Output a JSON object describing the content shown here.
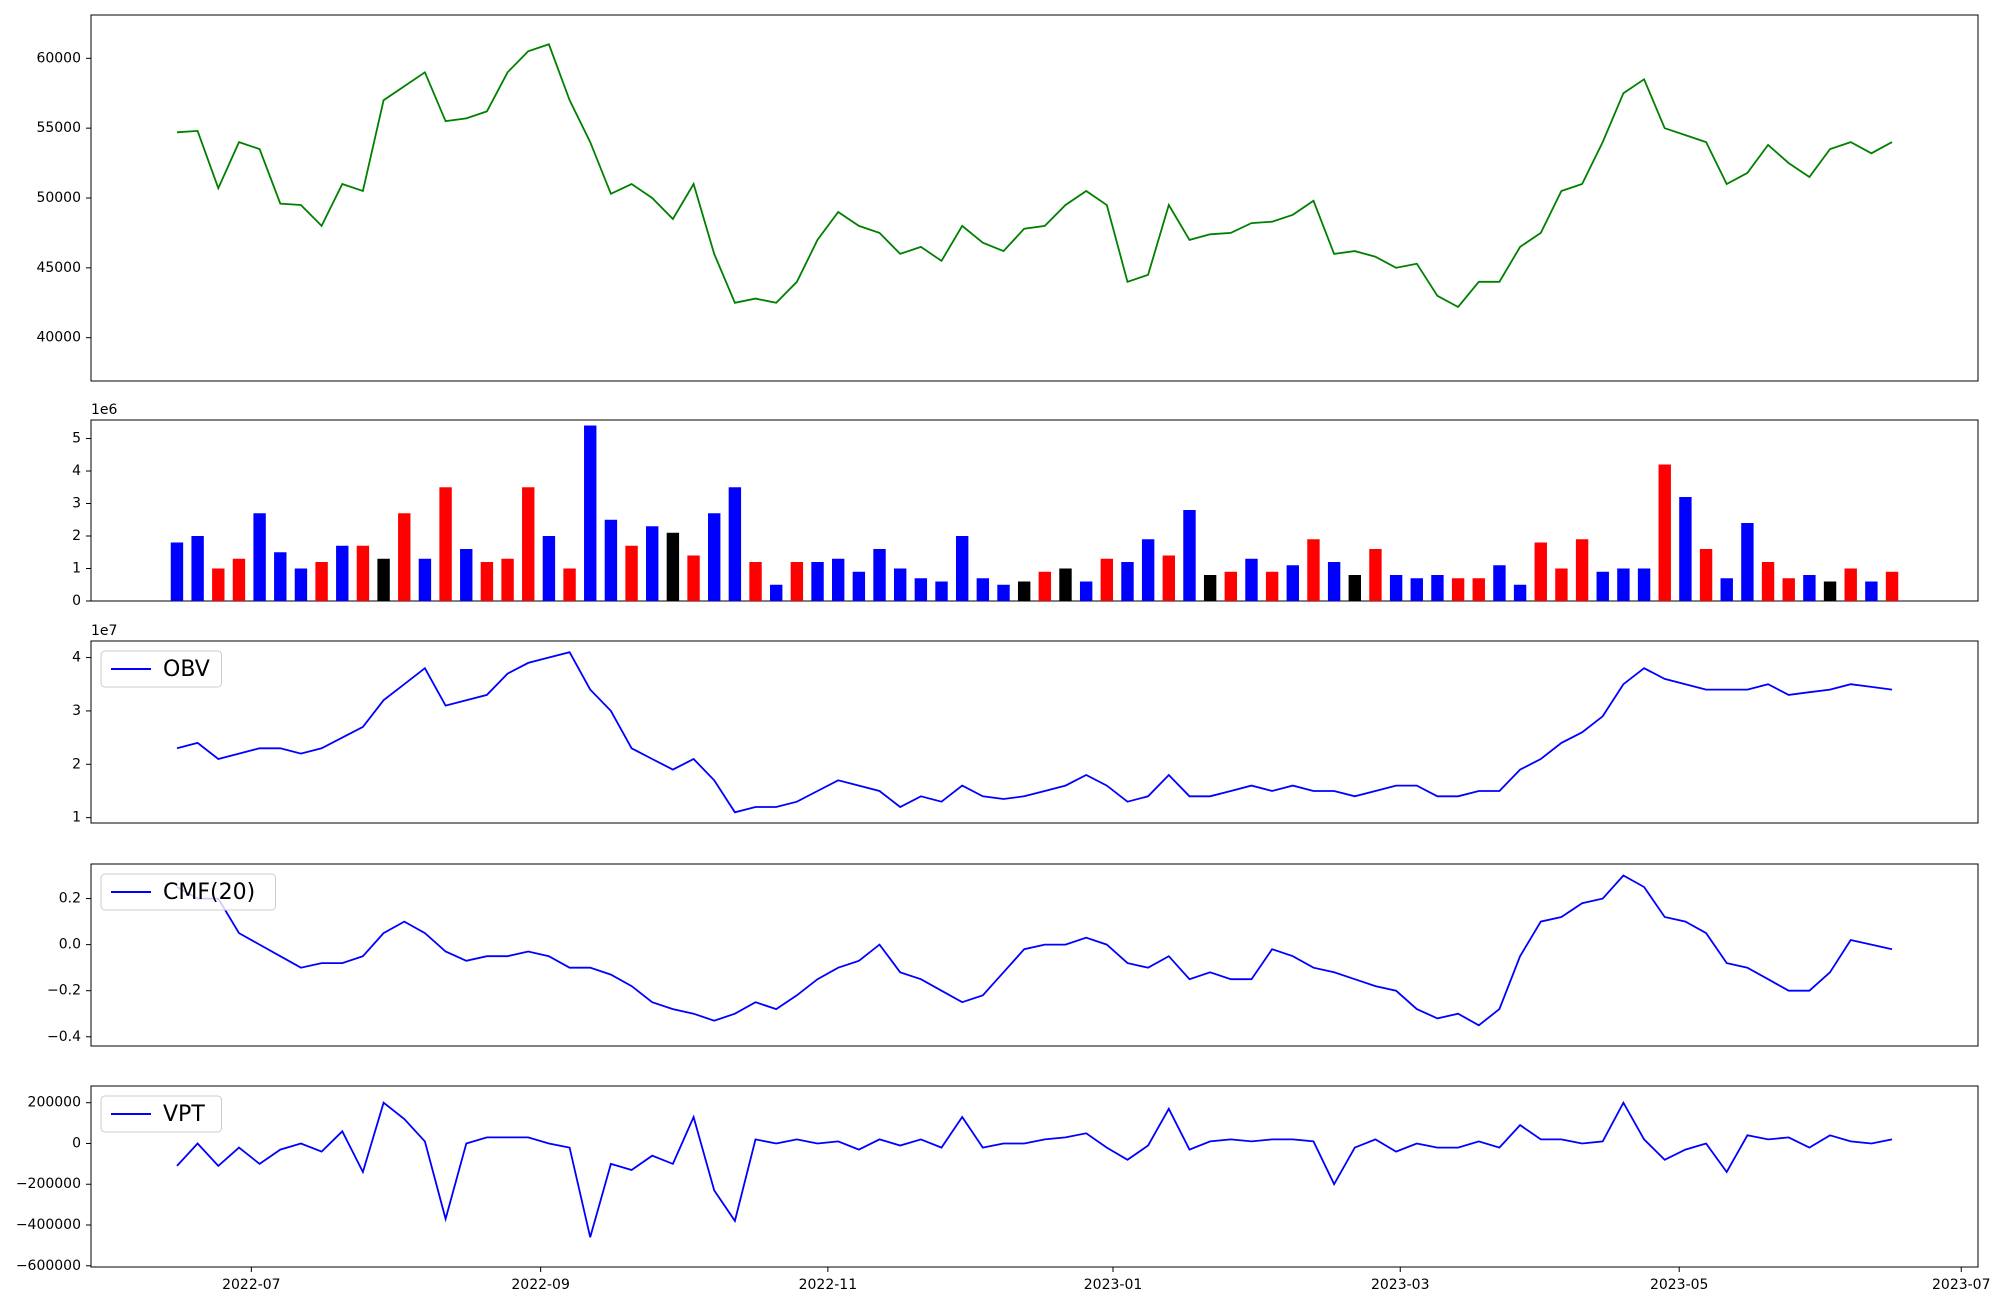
{
  "chart_data": [
    {
      "type": "line",
      "xlim": [
        -4.16,
        87.16
      ],
      "ylim": [
        36900,
        63100
      ],
      "yticks": [
        40000,
        45000,
        50000,
        55000,
        60000
      ],
      "series": [
        {
          "color": "green",
          "values": [
            54700,
            54800,
            50700,
            54000,
            53500,
            49600,
            49500,
            48000,
            51000,
            50500,
            57000,
            58000,
            59000,
            55500,
            55700,
            56200,
            59000,
            60500,
            61000,
            57000,
            54000,
            50300,
            51000,
            50000,
            48500,
            51000,
            46000,
            42500,
            42800,
            42500,
            44000,
            47000,
            49000,
            48000,
            47500,
            46000,
            46500,
            45500,
            48000,
            46800,
            46200,
            47800,
            48000,
            49500,
            50500,
            49500,
            44000,
            44500,
            49500,
            47000,
            47400,
            47500,
            48200,
            48300,
            48800,
            49800,
            46000,
            46200,
            45800,
            45000,
            45300,
            43000,
            42200,
            44000,
            44000,
            46500,
            47500,
            50500,
            51000,
            54000,
            57500,
            58500,
            55000,
            54500,
            54000,
            51000,
            51800,
            53800,
            52500,
            51500,
            53500,
            54000,
            53200,
            54000
          ]
        }
      ]
    },
    {
      "type": "bar",
      "xlim": [
        -4.16,
        87.16
      ],
      "ylim": [
        0,
        5.57
      ],
      "yticks": [
        0,
        1,
        2,
        3,
        4,
        5
      ],
      "offset_label": "1e6",
      "values": [
        1.8,
        2.0,
        1.0,
        1.3,
        2.7,
        1.5,
        1.0,
        1.2,
        1.7,
        1.7,
        1.3,
        2.7,
        1.3,
        3.5,
        1.6,
        1.2,
        1.3,
        3.5,
        2.0,
        1.0,
        5.4,
        2.5,
        1.7,
        2.3,
        2.1,
        1.4,
        2.7,
        3.5,
        1.2,
        0.5,
        1.2,
        1.2,
        1.3,
        0.9,
        1.6,
        1.0,
        0.7,
        0.6,
        2.0,
        0.7,
        0.5,
        0.6,
        0.9,
        1.0,
        0.6,
        1.3,
        1.2,
        1.9,
        1.4,
        2.8,
        0.8,
        0.9,
        1.3,
        0.9,
        1.1,
        1.9,
        1.2,
        0.8,
        1.6,
        0.8,
        0.7,
        0.8,
        0.7,
        0.7,
        1.1,
        0.5,
        1.8,
        1.0,
        1.9,
        0.9,
        1.0,
        1.0,
        4.2,
        3.2,
        1.6,
        0.7,
        2.4,
        1.2,
        0.7,
        0.8,
        0.6,
        1.0,
        0.6,
        0.9
      ],
      "colors": [
        "blue",
        "blue",
        "red",
        "red",
        "blue",
        "blue",
        "blue",
        "red",
        "blue",
        "red",
        "black",
        "red",
        "blue",
        "red",
        "blue",
        "red",
        "red",
        "red",
        "blue",
        "red",
        "blue",
        "blue",
        "red",
        "blue",
        "black",
        "red",
        "blue",
        "blue",
        "red",
        "blue",
        "red",
        "blue",
        "blue",
        "blue",
        "blue",
        "blue",
        "blue",
        "blue",
        "blue",
        "blue",
        "blue",
        "black",
        "red",
        "black",
        "blue",
        "red",
        "blue",
        "blue",
        "red",
        "blue",
        "black",
        "red",
        "blue",
        "red",
        "blue",
        "red",
        "blue",
        "black",
        "red",
        "blue",
        "blue",
        "blue",
        "red",
        "red",
        "blue",
        "blue",
        "red",
        "red",
        "red",
        "blue",
        "blue",
        "blue",
        "red",
        "blue",
        "red",
        "blue",
        "blue",
        "red",
        "red",
        "blue",
        "black",
        "red",
        "blue",
        "red"
      ]
    },
    {
      "type": "line",
      "xlim": [
        -4.16,
        87.16
      ],
      "ylim": [
        0.9,
        4.31
      ],
      "yticks": [
        1,
        2,
        3,
        4
      ],
      "offset_label": "1e7",
      "legend": "upper left",
      "series": [
        {
          "name": "OBV",
          "color": "blue",
          "values": [
            2.3,
            2.4,
            2.1,
            2.2,
            2.3,
            2.3,
            2.2,
            2.3,
            2.5,
            2.7,
            3.2,
            3.5,
            3.8,
            3.1,
            3.2,
            3.3,
            3.7,
            3.9,
            4.0,
            4.1,
            3.4,
            3.0,
            2.3,
            2.1,
            1.9,
            2.1,
            1.7,
            1.1,
            1.2,
            1.2,
            1.3,
            1.5,
            1.7,
            1.6,
            1.5,
            1.2,
            1.4,
            1.3,
            1.6,
            1.4,
            1.35,
            1.4,
            1.5,
            1.6,
            1.8,
            1.6,
            1.3,
            1.4,
            1.8,
            1.4,
            1.4,
            1.5,
            1.6,
            1.5,
            1.6,
            1.5,
            1.5,
            1.4,
            1.5,
            1.6,
            1.6,
            1.4,
            1.4,
            1.5,
            1.5,
            1.9,
            2.1,
            2.4,
            2.6,
            2.9,
            3.5,
            3.8,
            3.6,
            3.5,
            3.4,
            3.4,
            3.4,
            3.5,
            3.3,
            3.35,
            3.4,
            3.5,
            3.45,
            3.4
          ]
        }
      ]
    },
    {
      "type": "line",
      "xlim": [
        -4.16,
        87.16
      ],
      "ylim": [
        -0.44,
        0.35
      ],
      "legend": "upper left",
      "yticks": [
        {
          "value": -0.4,
          "label": "−0.4"
        },
        {
          "value": -0.2,
          "label": "−0.2"
        },
        {
          "value": 0,
          "label": "0.0"
        },
        {
          "value": 0.2,
          "label": "0.2"
        }
      ],
      "series": [
        {
          "name": "CMF(20)",
          "color": "blue",
          "values": [
            0.25,
            0.2,
            0.2,
            0.05,
            0.0,
            -0.05,
            -0.1,
            -0.08,
            -0.08,
            -0.05,
            0.05,
            0.1,
            0.05,
            -0.03,
            -0.07,
            -0.05,
            -0.05,
            -0.03,
            -0.05,
            -0.1,
            -0.1,
            -0.13,
            -0.18,
            -0.25,
            -0.28,
            -0.3,
            -0.33,
            -0.3,
            -0.25,
            -0.28,
            -0.22,
            -0.15,
            -0.1,
            -0.07,
            0.0,
            -0.12,
            -0.15,
            -0.2,
            -0.25,
            -0.22,
            -0.12,
            -0.02,
            0.0,
            0.0,
            0.03,
            0.0,
            -0.08,
            -0.1,
            -0.05,
            -0.15,
            -0.12,
            -0.15,
            -0.15,
            -0.02,
            -0.05,
            -0.1,
            -0.12,
            -0.15,
            -0.18,
            -0.2,
            -0.28,
            -0.32,
            -0.3,
            -0.35,
            -0.28,
            -0.05,
            0.1,
            0.12,
            0.18,
            0.2,
            0.3,
            0.25,
            0.12,
            0.1,
            0.05,
            -0.08,
            -0.1,
            -0.15,
            -0.2,
            -0.2,
            -0.12,
            0.02,
            0.0,
            -0.02
          ]
        }
      ]
    },
    {
      "type": "line",
      "xlim": [
        -4.16,
        87.16
      ],
      "ylim": [
        -606000,
        282000
      ],
      "legend": "upper left",
      "yticks": [
        {
          "value": -600000,
          "label": "−600000"
        },
        {
          "value": -400000,
          "label": "−400000"
        },
        {
          "value": -200000,
          "label": "−200000"
        },
        0,
        200000
      ],
      "xticks": [
        {
          "value": 3.6,
          "label": "2022-07"
        },
        {
          "value": 17.6,
          "label": "2022-09"
        },
        {
          "value": 31.5,
          "label": "2022-11"
        },
        {
          "value": 45.3,
          "label": "2023-01"
        },
        {
          "value": 59.2,
          "label": "2023-03"
        },
        {
          "value": 72.7,
          "label": "2023-05"
        },
        {
          "value": 86.35,
          "label": "2023-07"
        }
      ],
      "series": [
        {
          "name": "VPT",
          "color": "blue",
          "values": [
            -110000,
            0,
            -110000,
            -20000,
            -100000,
            -30000,
            0,
            -40000,
            60000,
            -140000,
            200000,
            120000,
            10000,
            -370000,
            0,
            30000,
            30000,
            30000,
            0,
            -20000,
            -460000,
            -100000,
            -130000,
            -60000,
            -100000,
            130000,
            -230000,
            -380000,
            20000,
            0,
            20000,
            0,
            10000,
            -30000,
            20000,
            -10000,
            20000,
            -20000,
            130000,
            -20000,
            0,
            0,
            20000,
            30000,
            50000,
            -20000,
            -80000,
            -10000,
            170000,
            -30000,
            10000,
            20000,
            10000,
            20000,
            20000,
            10000,
            -200000,
            -20000,
            20000,
            -40000,
            0,
            -20000,
            -20000,
            10000,
            -20000,
            90000,
            20000,
            20000,
            0,
            10000,
            200000,
            20000,
            -80000,
            -30000,
            0,
            -140000,
            40000,
            20000,
            30000,
            -20000,
            40000,
            10000,
            0,
            20000
          ]
        }
      ]
    }
  ]
}
